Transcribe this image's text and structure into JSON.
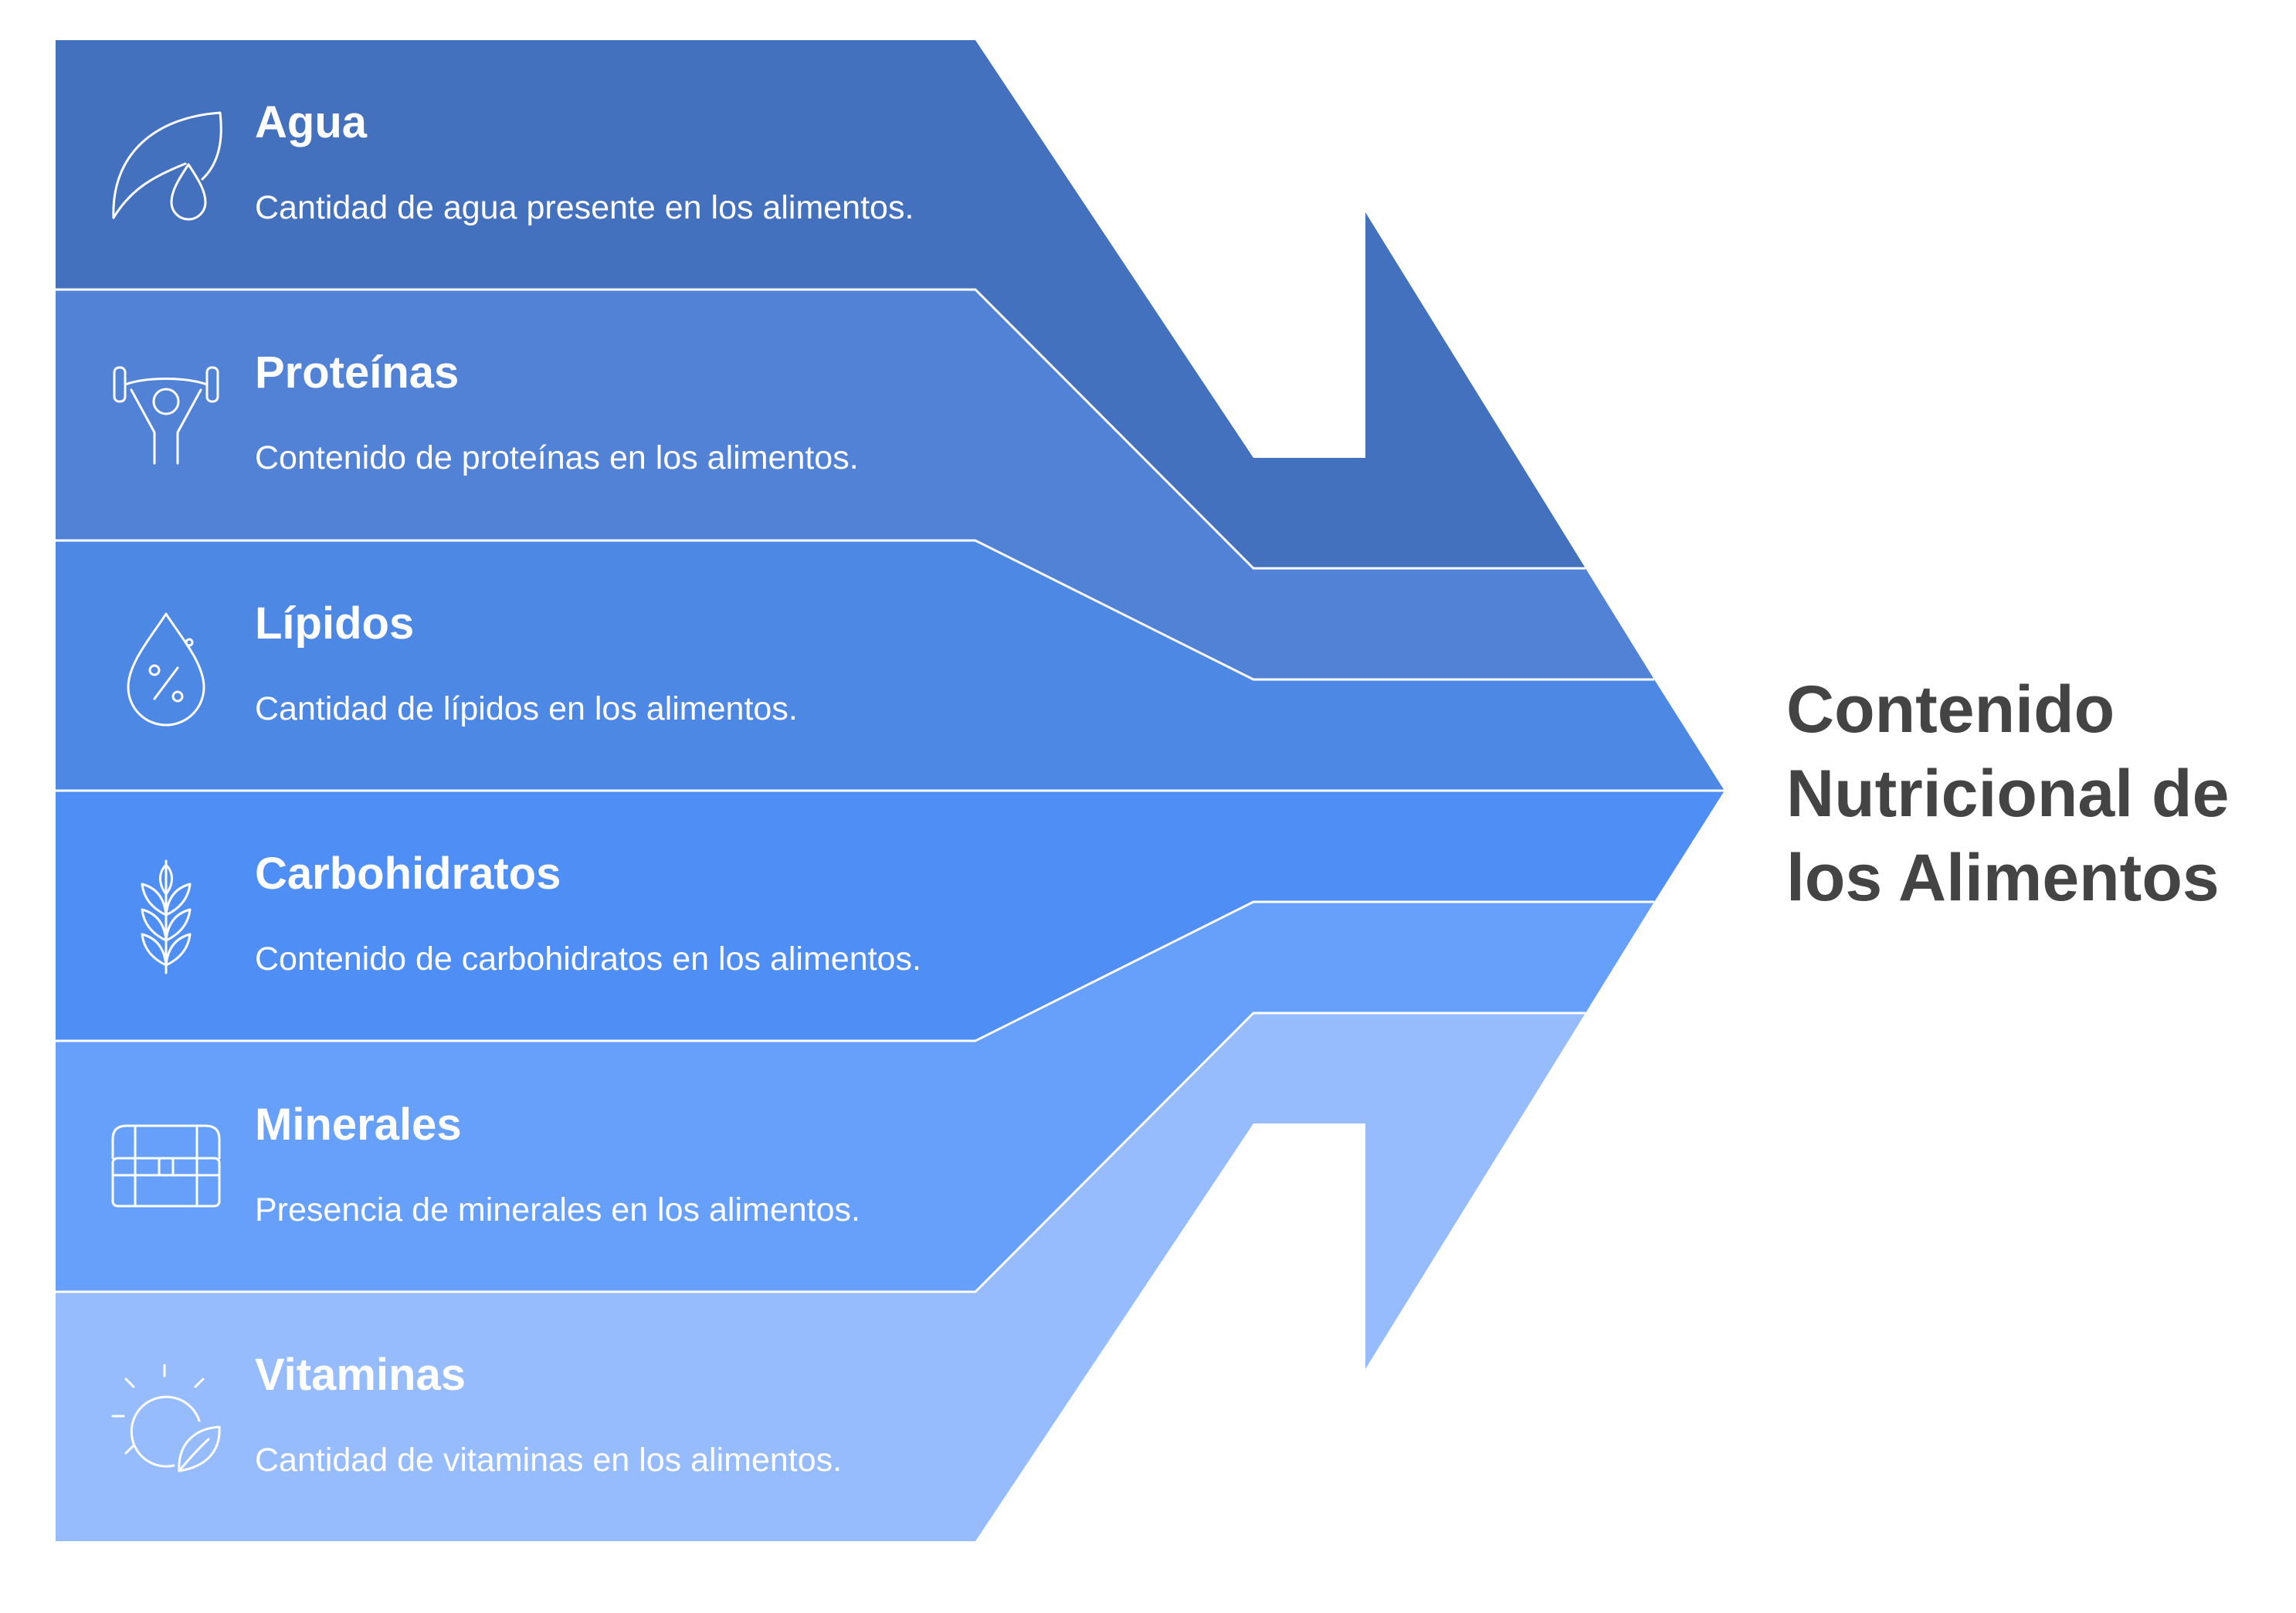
{
  "title": [
    "Contenido",
    "Nutricional de",
    "los Alimentos"
  ],
  "items": [
    {
      "label": "Agua",
      "description": "Cantidad de agua presente en los alimentos.",
      "icon": "leaf-drop-icon",
      "color": "#4371BE"
    },
    {
      "label": "Proteínas",
      "description": "Contenido de proteínas en los alimentos.",
      "icon": "weightlifter-icon",
      "color": "#5182D5"
    },
    {
      "label": "Lípidos",
      "description": "Cantidad de lípidos en los alimentos.",
      "icon": "percent-drop-icon",
      "color": "#4E88E5"
    },
    {
      "label": "Carbohidratos",
      "description": "Contenido de carbohidratos en los alimentos.",
      "icon": "wheat-icon",
      "color": "#4F8FF5"
    },
    {
      "label": "Minerales",
      "description": "Presencia de minerales en los alimentos.",
      "icon": "treasure-chest-icon",
      "color": "#66A0FB"
    },
    {
      "label": "Vitaminas",
      "description": "Cantidad de vitaminas en los alimentos.",
      "icon": "sun-leaf-icon",
      "color": "#96BCFD"
    }
  ]
}
